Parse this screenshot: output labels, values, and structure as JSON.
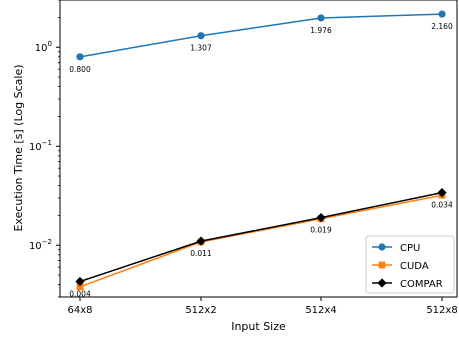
{
  "chart_data": {
    "type": "line",
    "title": "",
    "xlabel": "Input Size",
    "ylabel": "Execution Time [s] (Log Scale)",
    "yscale": "log",
    "ylim": [
      0.003,
      3.0
    ],
    "categories": [
      "64x8",
      "512x2",
      "512x4",
      "512x8"
    ],
    "yticks": [
      {
        "value": 0.01,
        "base": "10",
        "exp": "−2"
      },
      {
        "value": 0.1,
        "base": "10",
        "exp": "−1"
      },
      {
        "value": 1,
        "base": "10",
        "exp": "0"
      }
    ],
    "series": [
      {
        "name": "CPU",
        "color": "#1f77b4",
        "marker": "circle",
        "values": [
          0.8,
          1.307,
          1.976,
          2.16
        ]
      },
      {
        "name": "CUDA",
        "color": "#ff7f0e",
        "marker": "square",
        "values": [
          0.0038,
          0.0108,
          0.0185,
          0.032
        ]
      },
      {
        "name": "COMPAR",
        "color": "#000000",
        "marker": "diamond",
        "values": [
          0.0043,
          0.011,
          0.019,
          0.034
        ]
      }
    ],
    "annotations": [
      {
        "series": "CPU",
        "index": 0,
        "text": "0.800"
      },
      {
        "series": "CPU",
        "index": 1,
        "text": "1.307"
      },
      {
        "series": "CPU",
        "index": 2,
        "text": "1.976"
      },
      {
        "series": "CPU",
        "index": 3,
        "text": "2.160"
      },
      {
        "series": "COMPAR",
        "index": 0,
        "text": "0.004"
      },
      {
        "series": "COMPAR",
        "index": 1,
        "text": "0.011"
      },
      {
        "series": "COMPAR",
        "index": 2,
        "text": "0.019"
      },
      {
        "series": "COMPAR",
        "index": 3,
        "text": "0.034"
      }
    ],
    "legend": {
      "position": "lower-right",
      "entries": [
        "CPU",
        "CUDA",
        "COMPAR"
      ]
    },
    "grid": false
  }
}
